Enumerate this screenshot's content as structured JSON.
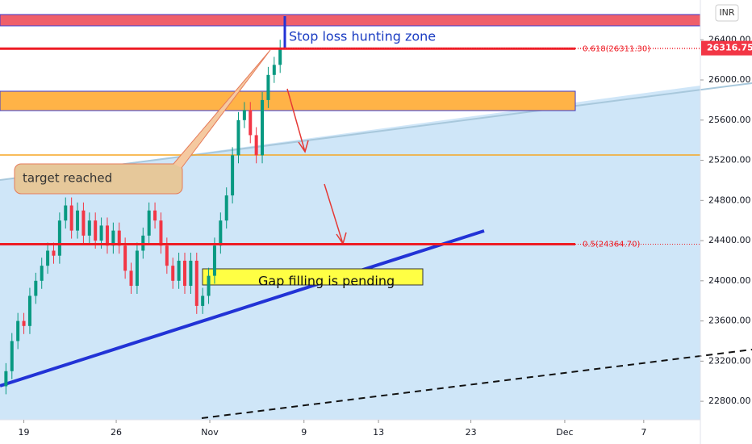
{
  "chart_data": {
    "type": "candlestick",
    "currency": "INR",
    "last_price": 26316.75,
    "annotations": [
      "Stop loss hunting zone",
      "target reached",
      "Gap filling is pending"
    ],
    "levels": [
      {
        "value": 26311.3,
        "label": "0.618(26311.30)"
      },
      {
        "value": 24364.7,
        "label": "0.5(24364.70)"
      }
    ],
    "ylim": [
      22616,
      26796
    ],
    "yticks": [
      {
        "value": 22800,
        "label": "22800.00"
      },
      {
        "value": 23200,
        "label": "23200.00"
      },
      {
        "value": 23600,
        "label": "23600.00"
      },
      {
        "value": 24000,
        "label": "24000.00"
      },
      {
        "value": 24400,
        "label": "24400.00"
      },
      {
        "value": 24800,
        "label": "24800.00"
      },
      {
        "value": 25200,
        "label": "25200.00"
      },
      {
        "value": 25600,
        "label": "25600.00"
      },
      {
        "value": 26000,
        "label": "26000.00"
      },
      {
        "value": 26400,
        "label": "26400.00"
      }
    ],
    "xlim": [
      0,
      235
    ],
    "xticks": [
      {
        "value": 8,
        "label": "19"
      },
      {
        "value": 39,
        "label": "26"
      },
      {
        "value": 70.4,
        "label": "Nov"
      },
      {
        "value": 102,
        "label": "9"
      },
      {
        "value": 127,
        "label": "13"
      },
      {
        "value": 158,
        "label": "23"
      },
      {
        "value": 189.5,
        "label": "Dec"
      },
      {
        "value": 216,
        "label": "7"
      }
    ],
    "up_color": "#089981",
    "down_color": "#f23645",
    "x": [
      2,
      4,
      6,
      8,
      10,
      12,
      14,
      16,
      18,
      20,
      22,
      24,
      26,
      28,
      30,
      32,
      34,
      36,
      38,
      40,
      42,
      44,
      46,
      48,
      50,
      52,
      54,
      56,
      58,
      60,
      62,
      64,
      66,
      68,
      70,
      72,
      74,
      76,
      78,
      80,
      82,
      84,
      86,
      88,
      90,
      92,
      94
    ],
    "ohlc": [
      [
        22950,
        23180,
        22870,
        23100
      ],
      [
        23100,
        23480,
        23020,
        23400
      ],
      [
        23400,
        23680,
        23320,
        23600
      ],
      [
        23600,
        23680,
        23470,
        23550
      ],
      [
        23550,
        23930,
        23470,
        23850
      ],
      [
        23850,
        24080,
        23770,
        24000
      ],
      [
        24000,
        24230,
        23920,
        24150
      ],
      [
        24150,
        24380,
        24070,
        24300
      ],
      [
        24300,
        24380,
        24170,
        24250
      ],
      [
        24250,
        24680,
        24170,
        24600
      ],
      [
        24600,
        24830,
        24520,
        24750
      ],
      [
        24750,
        24830,
        24420,
        24500
      ],
      [
        24500,
        24780,
        24420,
        24700
      ],
      [
        24700,
        24780,
        24370,
        24450
      ],
      [
        24450,
        24680,
        24370,
        24600
      ],
      [
        24600,
        24680,
        24320,
        24400
      ],
      [
        24400,
        24630,
        24320,
        24550
      ],
      [
        24550,
        24630,
        24270,
        24350
      ],
      [
        24350,
        24580,
        24270,
        24500
      ],
      [
        24500,
        24580,
        24270,
        24350
      ],
      [
        24350,
        24430,
        24020,
        24100
      ],
      [
        24100,
        24180,
        23870,
        23950
      ],
      [
        23950,
        24380,
        23870,
        24300
      ],
      [
        24300,
        24530,
        24220,
        24450
      ],
      [
        24450,
        24780,
        24370,
        24700
      ],
      [
        24700,
        24780,
        24520,
        24600
      ],
      [
        24600,
        24680,
        24270,
        24350
      ],
      [
        24350,
        24430,
        24070,
        24150
      ],
      [
        24150,
        24230,
        23920,
        24000
      ],
      [
        24000,
        24280,
        23920,
        24200
      ],
      [
        24200,
        24280,
        23870,
        23950
      ],
      [
        23950,
        24280,
        23870,
        24200
      ],
      [
        24200,
        24280,
        23670,
        23750
      ],
      [
        23750,
        23930,
        23670,
        23850
      ],
      [
        23850,
        24130,
        23770,
        24050
      ],
      [
        24050,
        24430,
        23970,
        24350
      ],
      [
        24350,
        24680,
        24270,
        24600
      ],
      [
        24600,
        24930,
        24520,
        24850
      ],
      [
        24850,
        25330,
        24770,
        25250
      ],
      [
        25250,
        25680,
        25170,
        25600
      ],
      [
        25600,
        25780,
        25520,
        25700
      ],
      [
        25700,
        25780,
        25370,
        25450
      ],
      [
        25450,
        25530,
        25170,
        25250
      ],
      [
        25250,
        25880,
        25170,
        25800
      ],
      [
        25800,
        26130,
        25720,
        26050
      ],
      [
        26050,
        26230,
        25970,
        26150
      ],
      [
        26150,
        26400,
        26070,
        26320
      ]
    ]
  }
}
